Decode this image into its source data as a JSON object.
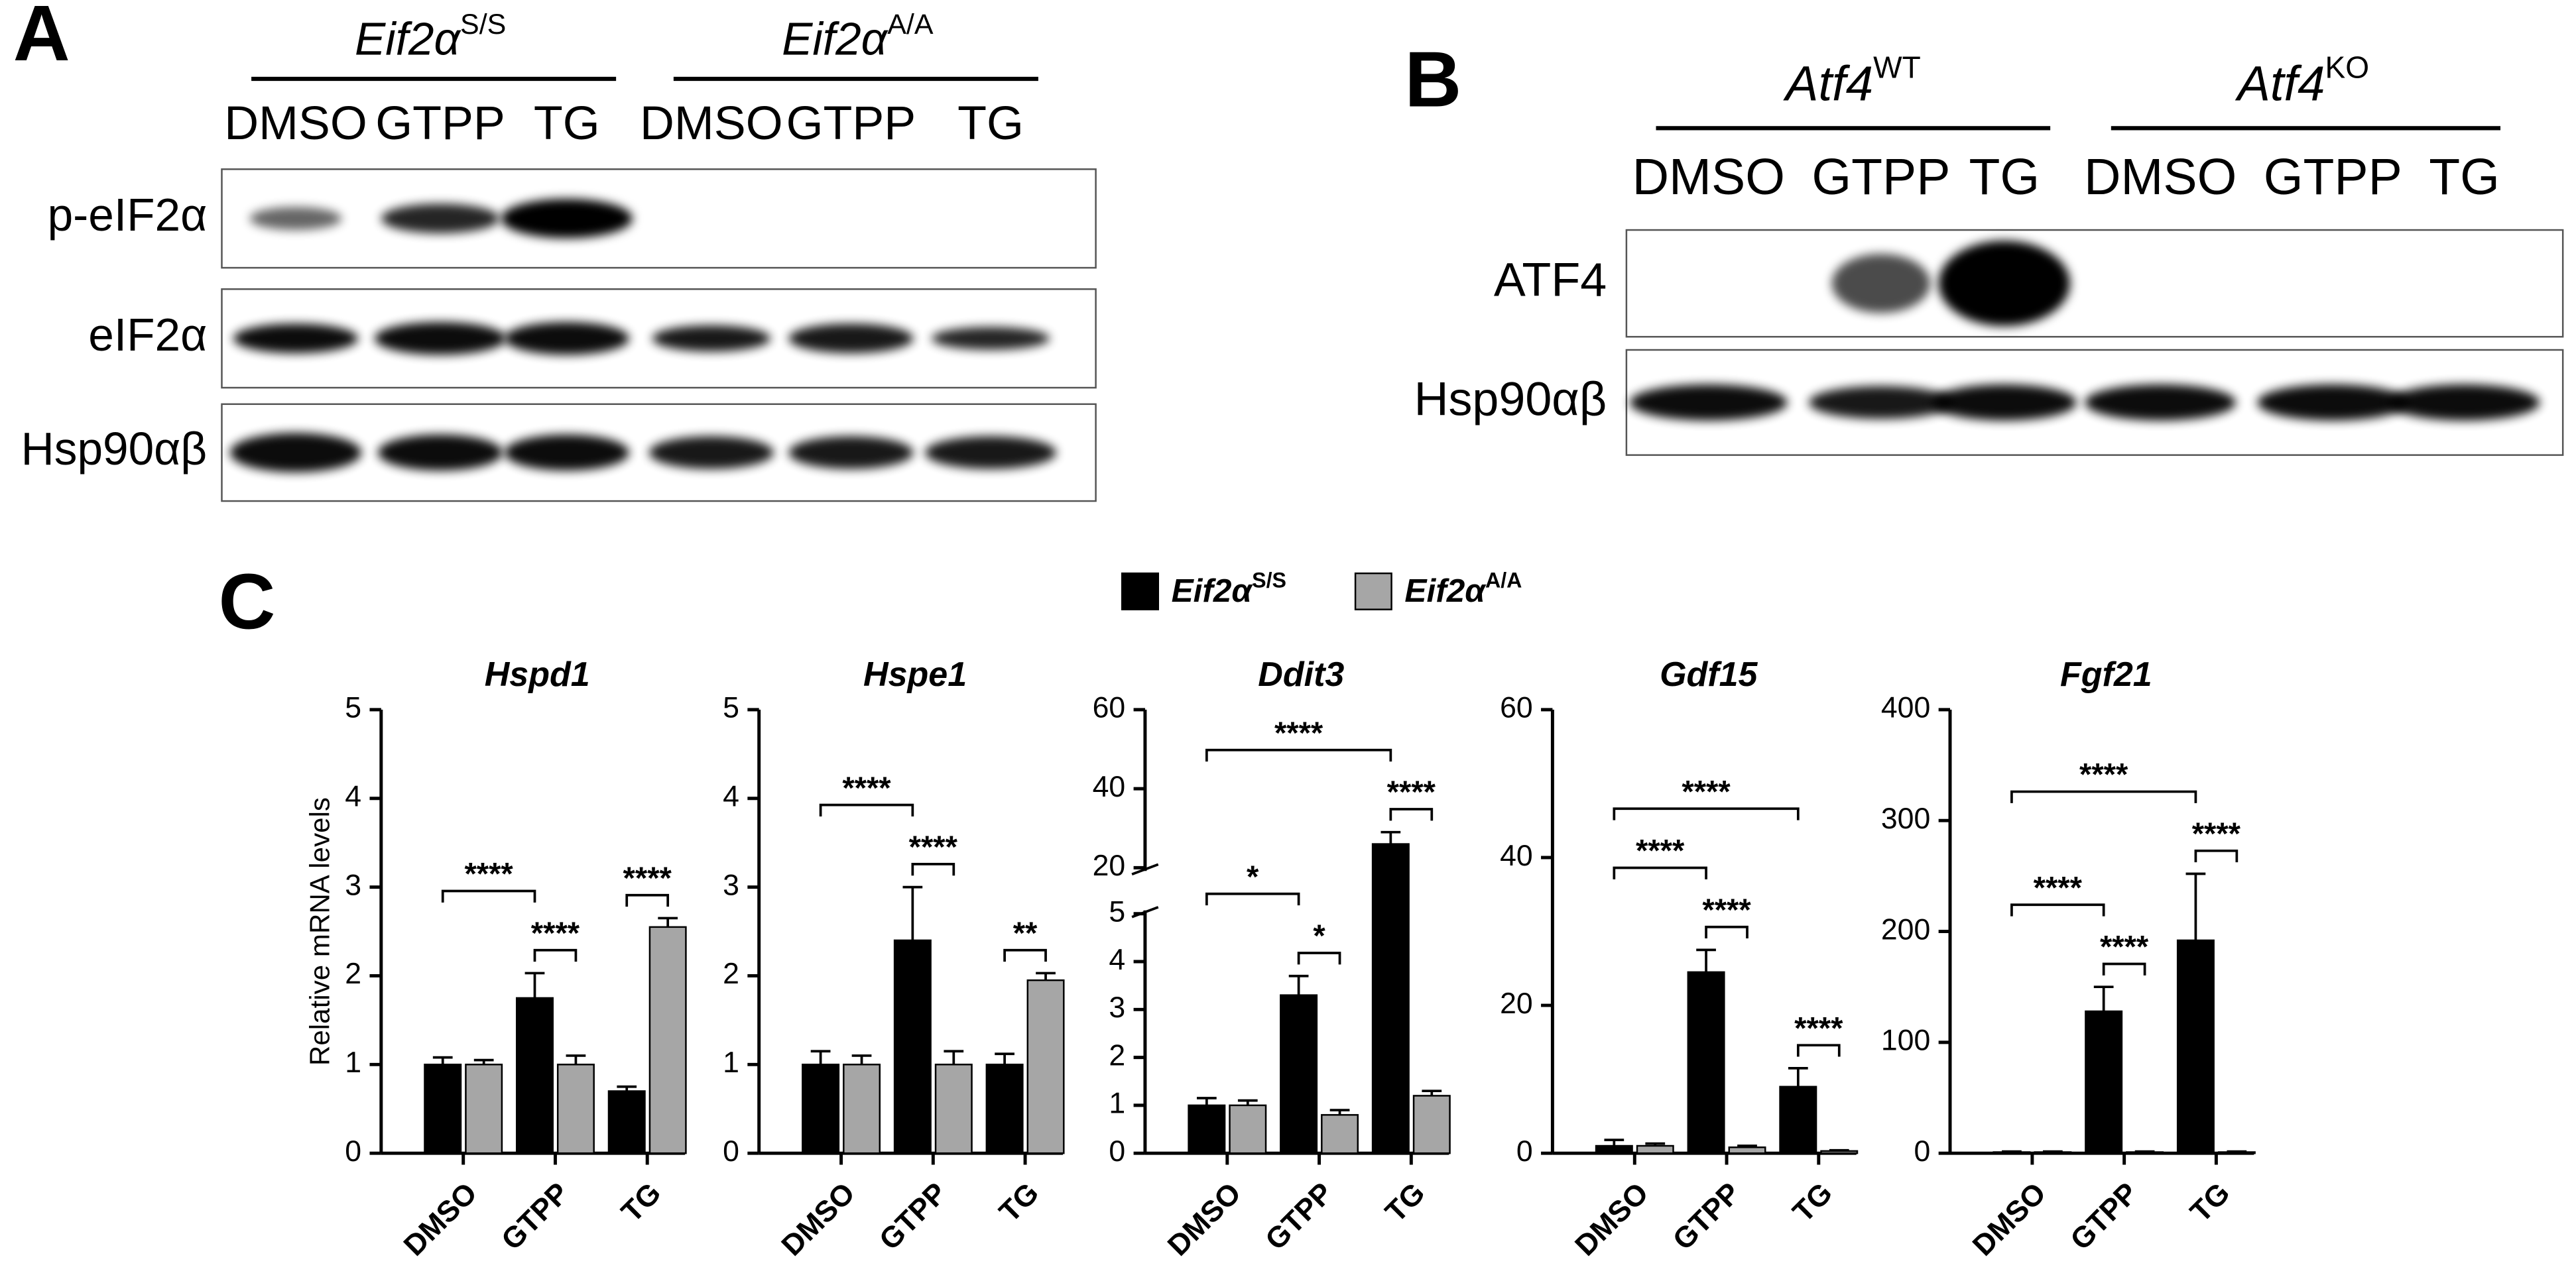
{
  "panel_labels": [
    "A",
    "B",
    "C"
  ],
  "blot_a": {
    "groups": [
      {
        "gene": "Eif2α",
        "genotype": "S/S"
      },
      {
        "gene": "Eif2α",
        "genotype": "A/A"
      }
    ],
    "lanes": [
      "DMSO",
      "GTPP",
      "TG",
      "DMSO",
      "GTPP",
      "TG"
    ],
    "rows": [
      "p-eIF2α",
      "eIF2α",
      "Hsp90αβ"
    ]
  },
  "blot_b": {
    "groups": [
      {
        "gene": "Atf4",
        "genotype": "WT"
      },
      {
        "gene": "Atf4",
        "genotype": "KO"
      }
    ],
    "lanes": [
      "DMSO",
      "GTPP",
      "TG",
      "DMSO",
      "GTPP",
      "TG"
    ],
    "rows": [
      "ATF4",
      "Hsp90αβ"
    ]
  },
  "chart_data": [
    {
      "type": "bar",
      "title": "Hspd1",
      "ylabel": "Relative mRNA levels",
      "categories": [
        "DMSO",
        "GTPP",
        "TG"
      ],
      "series": [
        {
          "name": "Eif2α",
          "name_sup": "S/S",
          "color": "#000000",
          "values": [
            1.0,
            1.75,
            0.7
          ],
          "errors": [
            0.08,
            0.28,
            0.05
          ]
        },
        {
          "name": "Eif2α",
          "name_sup": "A/A",
          "color": "#a6a6a6",
          "values": [
            1.0,
            1.0,
            2.55
          ],
          "errors": [
            0.05,
            0.1,
            0.1
          ]
        }
      ],
      "ylim": [
        0,
        5
      ],
      "yticks": [
        0,
        1,
        2,
        3,
        4,
        5
      ],
      "annotations": [
        {
          "label": "****",
          "bars": [
            2,
            3
          ]
        },
        {
          "label": "****",
          "bars": [
            4,
            5
          ]
        },
        {
          "label": "****",
          "bars": [
            0,
            2
          ]
        }
      ]
    },
    {
      "type": "bar",
      "title": "Hspe1",
      "categories": [
        "DMSO",
        "GTPP",
        "TG"
      ],
      "series": [
        {
          "name": "Eif2α",
          "name_sup": "S/S",
          "color": "#000000",
          "values": [
            1.0,
            2.4,
            1.0
          ],
          "errors": [
            0.15,
            0.6,
            0.12
          ]
        },
        {
          "name": "Eif2α",
          "name_sup": "A/A",
          "color": "#a6a6a6",
          "values": [
            1.0,
            1.0,
            1.95
          ],
          "errors": [
            0.1,
            0.15,
            0.08
          ]
        }
      ],
      "ylim": [
        0,
        5
      ],
      "yticks": [
        0,
        1,
        2,
        3,
        4,
        5
      ],
      "annotations": [
        {
          "label": "****",
          "bars": [
            2,
            3
          ]
        },
        {
          "label": "**",
          "bars": [
            4,
            5
          ]
        },
        {
          "label": "****",
          "bars": [
            0,
            2
          ]
        }
      ]
    },
    {
      "type": "bar",
      "title": "Ddit3",
      "categories": [
        "DMSO",
        "GTPP",
        "TG"
      ],
      "series": [
        {
          "name": "Eif2α",
          "name_sup": "S/S",
          "color": "#000000",
          "values": [
            1.0,
            3.3,
            26
          ],
          "errors": [
            0.15,
            0.4,
            3
          ]
        },
        {
          "name": "Eif2α",
          "name_sup": "A/A",
          "color": "#a6a6a6",
          "values": [
            1.0,
            0.8,
            1.2
          ],
          "errors": [
            0.1,
            0.1,
            0.1
          ]
        }
      ],
      "ylim": [
        0,
        60
      ],
      "axis_break": [
        5,
        20
      ],
      "yticks": [
        0,
        1,
        2,
        3,
        4,
        5,
        20,
        40,
        60
      ],
      "annotations": [
        {
          "label": "*",
          "bars": [
            2,
            3
          ]
        },
        {
          "label": "****",
          "bars": [
            4,
            5
          ]
        },
        {
          "label": "*",
          "bars": [
            0,
            2
          ]
        },
        {
          "label": "****",
          "bars": [
            0,
            4
          ]
        }
      ]
    },
    {
      "type": "bar",
      "title": "Gdf15",
      "categories": [
        "DMSO",
        "GTPP",
        "TG"
      ],
      "series": [
        {
          "name": "Eif2α",
          "name_sup": "S/S",
          "color": "#000000",
          "values": [
            1,
            24.5,
            9
          ],
          "errors": [
            0.8,
            3,
            2.5
          ]
        },
        {
          "name": "Eif2α",
          "name_sup": "A/A",
          "color": "#a6a6a6",
          "values": [
            1,
            0.8,
            0.3
          ],
          "errors": [
            0.3,
            0.2,
            0.1
          ]
        }
      ],
      "ylim": [
        0,
        60
      ],
      "yticks": [
        0,
        20,
        40,
        60
      ],
      "annotations": [
        {
          "label": "****",
          "bars": [
            2,
            3
          ]
        },
        {
          "label": "****",
          "bars": [
            4,
            5
          ]
        },
        {
          "label": "****",
          "bars": [
            0,
            2
          ]
        },
        {
          "label": "****",
          "bars": [
            0,
            4
          ]
        }
      ]
    },
    {
      "type": "bar",
      "title": "Fgf21",
      "categories": [
        "DMSO",
        "GTPP",
        "TG"
      ],
      "series": [
        {
          "name": "Eif2α",
          "name_sup": "S/S",
          "color": "#000000",
          "values": [
            1,
            128,
            192
          ],
          "errors": [
            0.5,
            22,
            60
          ]
        },
        {
          "name": "Eif2α",
          "name_sup": "A/A",
          "color": "#a6a6a6",
          "values": [
            1,
            1,
            1
          ],
          "errors": [
            0.5,
            0.5,
            0.5
          ]
        }
      ],
      "ylim": [
        0,
        400
      ],
      "yticks": [
        0,
        100,
        200,
        300,
        400
      ],
      "annotations": [
        {
          "label": "****",
          "bars": [
            2,
            3
          ]
        },
        {
          "label": "****",
          "bars": [
            4,
            5
          ]
        },
        {
          "label": "****",
          "bars": [
            0,
            2
          ]
        },
        {
          "label": "****",
          "bars": [
            0,
            4
          ]
        }
      ]
    }
  ]
}
